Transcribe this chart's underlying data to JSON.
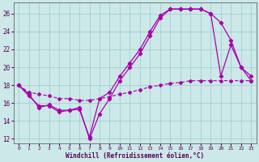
{
  "xlabel": "Windchill (Refroidissement éolien,°C)",
  "xlim": [
    -0.5,
    23.5
  ],
  "ylim": [
    11.5,
    27.2
  ],
  "yticks": [
    12,
    14,
    16,
    18,
    20,
    22,
    24,
    26
  ],
  "xticks": [
    0,
    1,
    2,
    3,
    4,
    5,
    6,
    7,
    8,
    9,
    10,
    11,
    12,
    13,
    14,
    15,
    16,
    17,
    18,
    19,
    20,
    21,
    22,
    23
  ],
  "line_color": "#aa00aa",
  "bg_color": "#cce8e8",
  "grid_color": "#99cccc",
  "line1_x": [
    0,
    1,
    2,
    3,
    4,
    5,
    6,
    7,
    8,
    9,
    10,
    11,
    12,
    13,
    14,
    15,
    16,
    17,
    18,
    19,
    20,
    21,
    22,
    23
  ],
  "line1_y": [
    18.0,
    17.0,
    15.5,
    15.8,
    15.2,
    15.2,
    15.5,
    12.0,
    14.8,
    16.5,
    18.5,
    20.0,
    21.5,
    23.5,
    25.5,
    26.5,
    26.5,
    26.5,
    26.5,
    26.0,
    19.0,
    22.5,
    20.0,
    19.0
  ],
  "line2_x": [
    0,
    1,
    2,
    3,
    4,
    5,
    6,
    7,
    8,
    9,
    10,
    11,
    12,
    13,
    14,
    15,
    16,
    17,
    18,
    19,
    20,
    21,
    22,
    23
  ],
  "line2_y": [
    18.0,
    16.8,
    15.7,
    15.7,
    15.0,
    15.2,
    15.3,
    12.2,
    16.5,
    17.2,
    19.0,
    20.5,
    22.0,
    24.0,
    25.8,
    26.5,
    26.5,
    26.5,
    26.5,
    26.0,
    25.0,
    23.0,
    20.0,
    18.5
  ],
  "line3_x": [
    0,
    1,
    2,
    3,
    4,
    5,
    6,
    7,
    8,
    9,
    10,
    11,
    12,
    13,
    14,
    15,
    16,
    17,
    18,
    19,
    20,
    21,
    22,
    23
  ],
  "line3_y": [
    18.0,
    17.2,
    17.0,
    16.8,
    16.5,
    16.5,
    16.3,
    16.3,
    16.5,
    16.7,
    17.0,
    17.2,
    17.5,
    17.8,
    18.0,
    18.2,
    18.3,
    18.5,
    18.5,
    18.5,
    18.5,
    18.5,
    18.5,
    18.5
  ]
}
